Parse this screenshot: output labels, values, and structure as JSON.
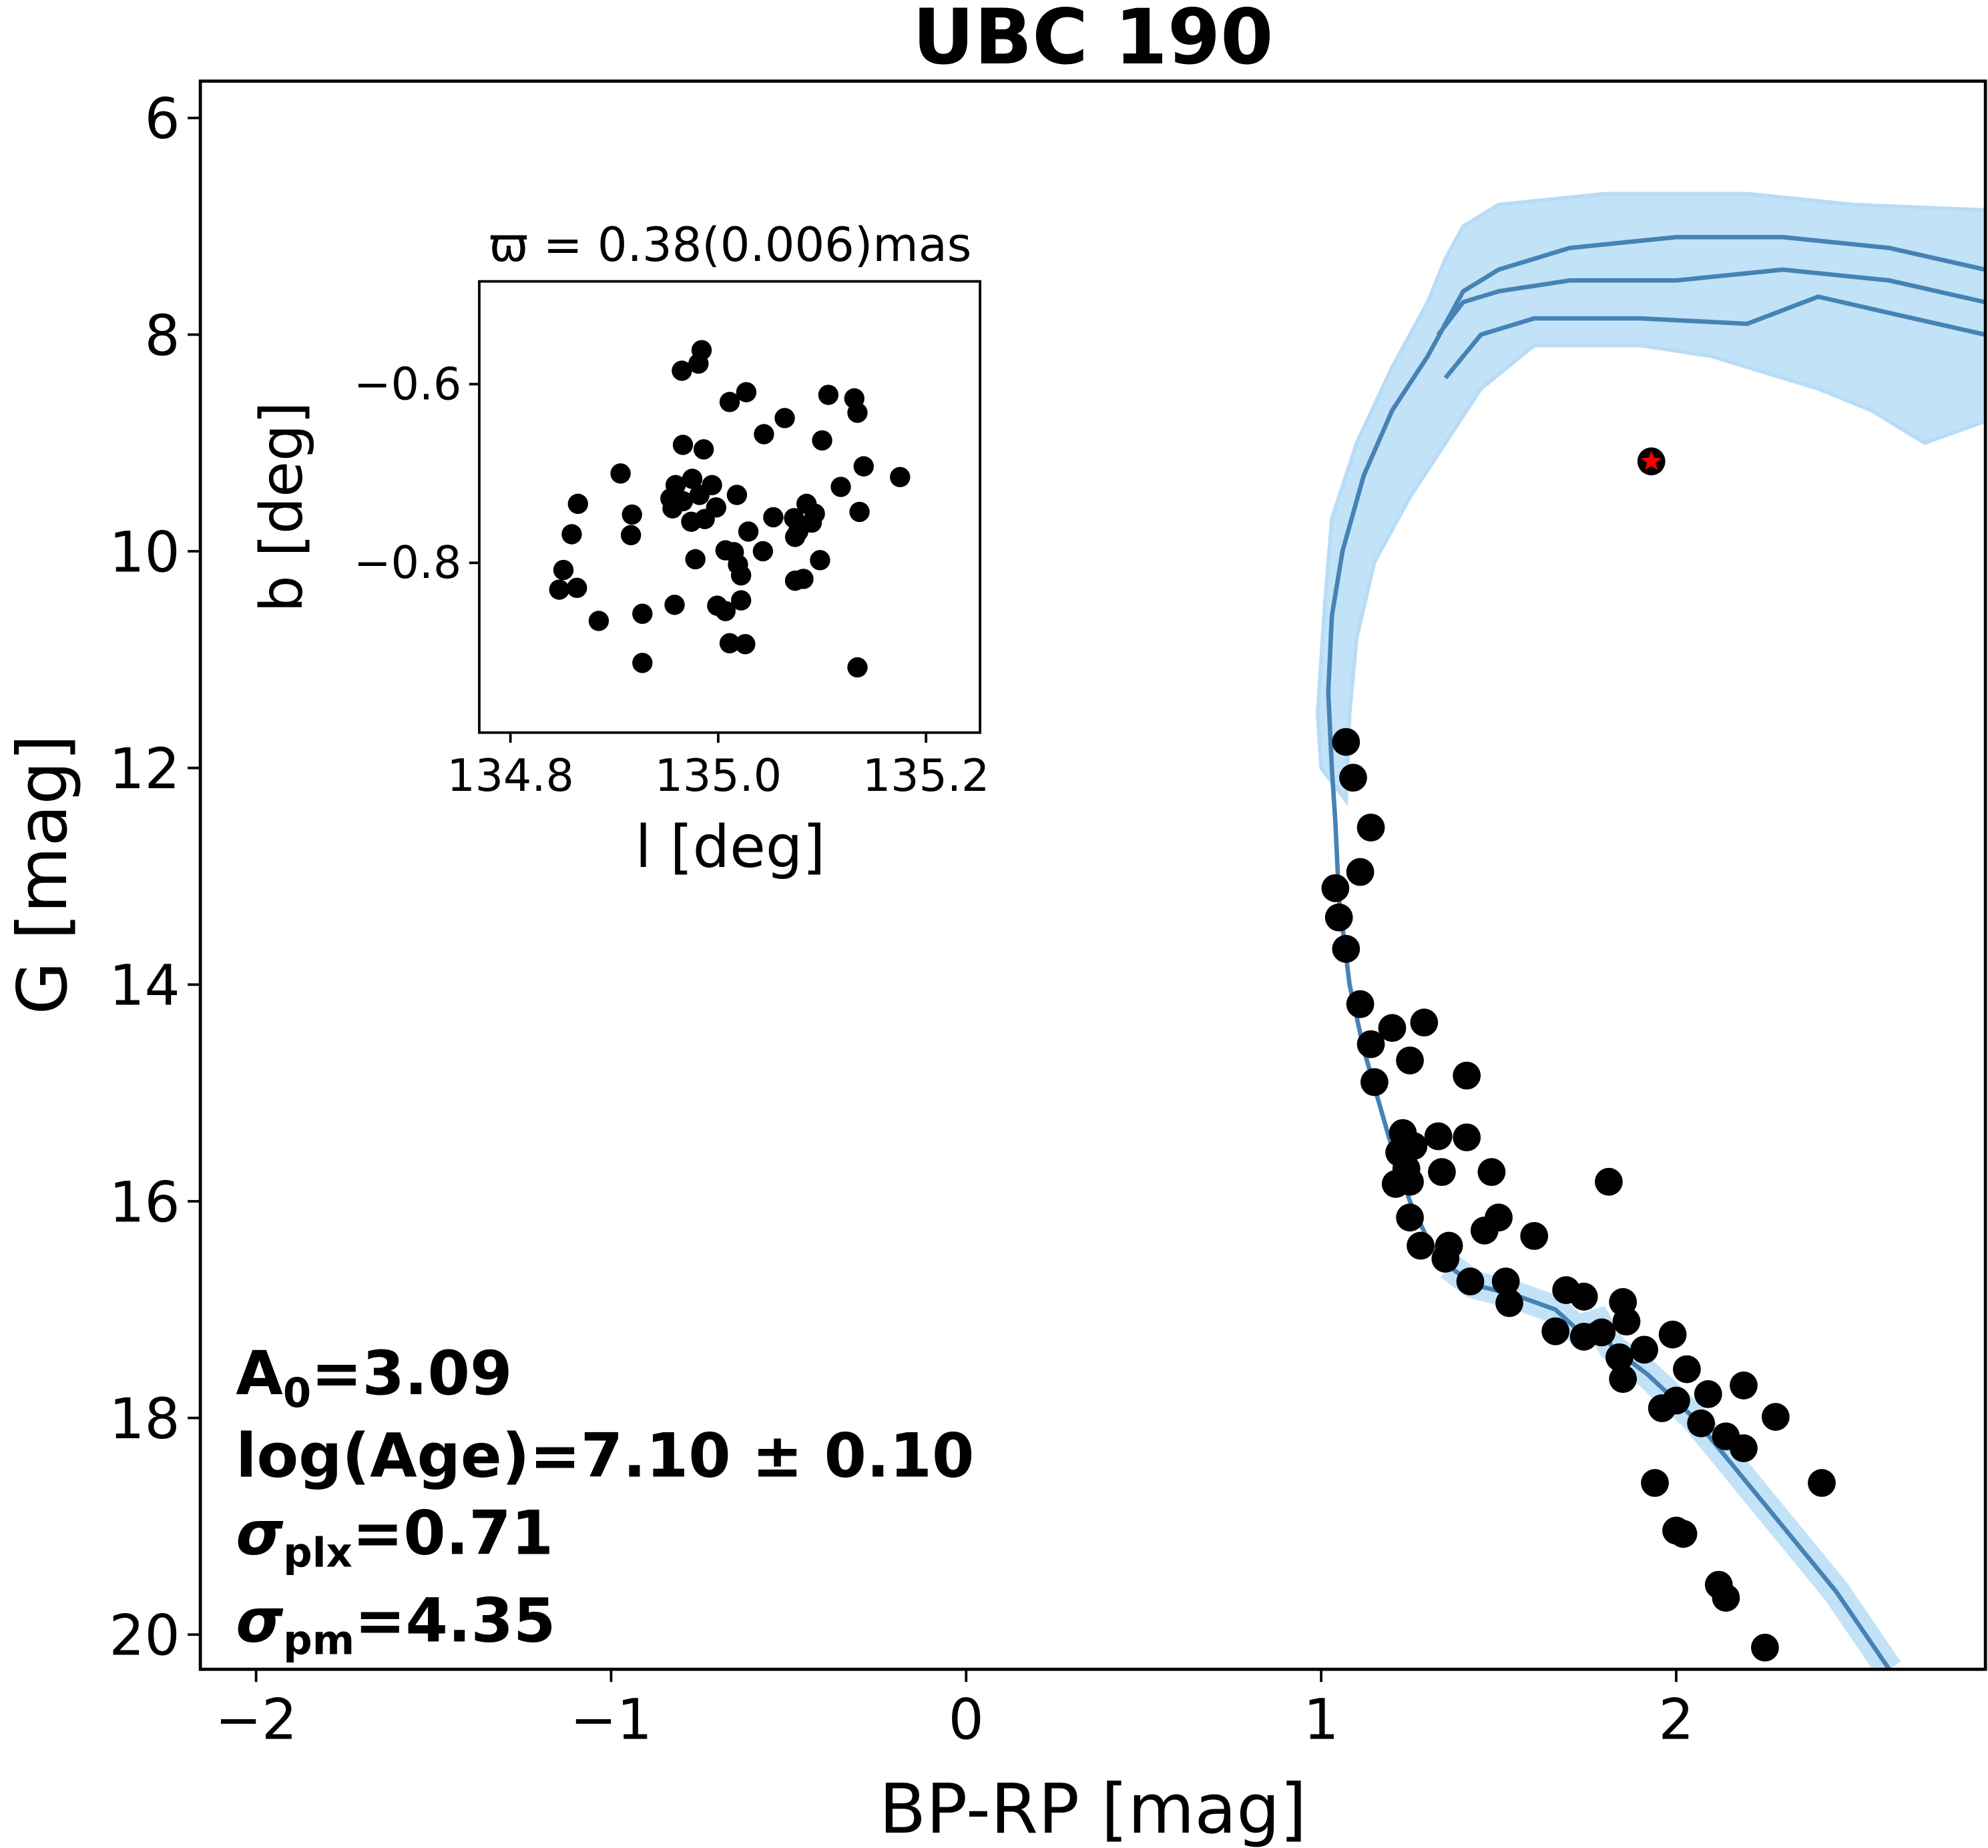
{
  "chart_data": [
    {
      "type": "scatter",
      "title": "UBC 190",
      "xlabel": "BP-RP [mag]",
      "ylabel": "G [mag]",
      "xlim": [
        -2.157,
        2.871
      ],
      "ylim": [
        20.32,
        5.66
      ],
      "y_inverted": true,
      "xticks": [
        -2,
        -1,
        0,
        1,
        2
      ],
      "xtick_labels": [
        "−2",
        "−1",
        "0",
        "1",
        "2"
      ],
      "yticks": [
        6,
        8,
        10,
        12,
        14,
        16,
        18,
        20
      ],
      "ytick_labels": [
        "6",
        "8",
        "10",
        "12",
        "14",
        "16",
        "18",
        "20"
      ],
      "grid": false,
      "colors": {
        "points": "#000000",
        "isochrone": "#4682b4",
        "band": "#aed8f5",
        "highlight": "#ff0000"
      },
      "series": [
        {
          "name": "members",
          "marker": "circle",
          "x": [
            1.07,
            1.09,
            1.14,
            1.11,
            1.04,
            1.05,
            1.07,
            1.11,
            1.2,
            1.29,
            1.14,
            1.25,
            1.41,
            1.15,
            1.23,
            1.33,
            1.22,
            1.26,
            1.41,
            1.24,
            1.34,
            1.48,
            1.21,
            1.25,
            1.81,
            1.25,
            1.5,
            1.46,
            1.6,
            1.28,
            1.36,
            1.35,
            1.42,
            1.52,
            1.69,
            1.74,
            1.53,
            1.85,
            1.86,
            1.66,
            1.74,
            1.79,
            1.99,
            1.84,
            1.91,
            2.03,
            2.09,
            2.19,
            1.85,
            2.0,
            1.96,
            2.28,
            2.07,
            2.14,
            2.19,
            2.41,
            1.94,
            2.02,
            2.12,
            2.14,
            2.25,
            2.0
          ],
          "y": [
            11.76,
            12.09,
            12.55,
            12.96,
            13.11,
            13.38,
            13.67,
            14.18,
            14.4,
            14.35,
            14.55,
            14.7,
            14.84,
            14.9,
            15.37,
            15.4,
            15.55,
            15.49,
            15.41,
            15.7,
            15.73,
            15.73,
            15.84,
            15.82,
            15.82,
            16.15,
            16.15,
            16.27,
            16.32,
            16.41,
            16.41,
            16.53,
            16.74,
            16.74,
            16.82,
            16.88,
            16.94,
            16.93,
            17.11,
            17.2,
            17.25,
            17.21,
            17.23,
            17.44,
            17.37,
            17.55,
            17.78,
            17.7,
            17.64,
            17.84,
            17.91,
            17.99,
            18.05,
            18.17,
            18.28,
            18.6,
            18.6,
            19.07,
            19.54,
            19.66,
            20.12,
            19.04
          ]
        },
        {
          "name": "highlighted star",
          "marker": "star",
          "x": [
            1.93
          ],
          "y": [
            9.17
          ]
        },
        {
          "name": "isochrone",
          "type": "line",
          "x": [
            2.6,
            2.45,
            2.3,
            2.15,
            2.05,
            1.92,
            1.82,
            1.78,
            1.72,
            1.66,
            1.55,
            1.43,
            1.36,
            1.3,
            1.25,
            1.19,
            1.12,
            1.08,
            1.05,
            1.04,
            1.03,
            1.02,
            1.03,
            1.06,
            1.12,
            1.2,
            1.3,
            1.35,
            1.4,
            1.5,
            1.7,
            2.0,
            2.3,
            2.6,
            2.87
          ],
          "y": [
            20.32,
            19.6,
            19.0,
            18.4,
            18.0,
            17.6,
            17.35,
            17.12,
            17.18,
            17.0,
            16.87,
            16.77,
            16.6,
            16.35,
            16.0,
            15.4,
            14.6,
            14.0,
            13.2,
            12.5,
            12.0,
            11.3,
            10.6,
            10.0,
            9.3,
            8.7,
            8.2,
            7.9,
            7.6,
            7.4,
            7.2,
            7.1,
            7.1,
            7.2,
            7.4
          ]
        },
        {
          "name": "isochrone-branch-2",
          "type": "line",
          "x": [
            1.33,
            1.4,
            1.5,
            1.7,
            2.0,
            2.3,
            2.6,
            2.87
          ],
          "y": [
            8.0,
            7.7,
            7.6,
            7.5,
            7.5,
            7.4,
            7.5,
            7.7
          ]
        },
        {
          "name": "isochrone-branch-3",
          "type": "line",
          "x": [
            1.35,
            1.45,
            1.6,
            1.9,
            2.2,
            2.4,
            2.6,
            2.87
          ],
          "y": [
            8.4,
            8.0,
            7.85,
            7.85,
            7.9,
            7.65,
            7.8,
            8.0
          ]
        },
        {
          "name": "isochrone-uncertainty-band",
          "type": "area",
          "x": [
            1.03,
            1.1,
            1.2,
            1.3,
            1.35,
            1.4,
            1.5,
            1.8,
            2.2,
            2.5,
            2.87,
            2.87,
            2.7,
            2.55,
            2.4,
            2.1,
            1.9,
            1.6,
            1.45,
            1.35,
            1.25,
            1.15,
            1.1,
            1.08,
            1.07,
            1.0,
            0.99,
            1.01
          ],
          "y": [
            9.7,
            9.0,
            8.3,
            7.7,
            7.3,
            7.0,
            6.8,
            6.7,
            6.7,
            6.8,
            6.85,
            8.8,
            9.0,
            8.7,
            8.5,
            8.2,
            8.1,
            8.1,
            8.5,
            9.0,
            9.5,
            10.1,
            10.8,
            11.5,
            12.3,
            12.0,
            11.5,
            10.5
          ]
        }
      ],
      "annotations": [
        {
          "main": "A",
          "sub": "0",
          "value": "=3.09",
          "italic": false
        },
        {
          "main": "log(Age)=7.10 ± 0.10",
          "sub": "",
          "value": "",
          "italic": false
        },
        {
          "main": "σ",
          "sub": "plx",
          "value": "=0.71",
          "italic": true
        },
        {
          "main": "σ",
          "sub": "pm",
          "value": "=4.35",
          "italic": true
        }
      ]
    },
    {
      "type": "scatter",
      "title": "ϖ = 0.38(0.006)mas",
      "xlabel": "l [deg]",
      "ylabel": "b [deg]",
      "xlim": [
        134.77,
        135.252
      ],
      "ylim": [
        -0.99,
        -0.485
      ],
      "xticks": [
        134.8,
        135.0,
        135.2
      ],
      "xtick_labels": [
        "134.8",
        "135.0",
        "135.2"
      ],
      "yticks": [
        -0.6,
        -0.8
      ],
      "ytick_labels": [
        "−0.6",
        "−0.8"
      ],
      "series": [
        {
          "name": "members",
          "x": [
            134.984,
            134.981,
            134.965,
            135.027,
            135.011,
            135.106,
            135.131,
            135.134,
            135.064,
            135.044,
            135.1,
            134.966,
            134.986,
            134.906,
            135.14,
            135.175,
            135.118,
            134.959,
            134.975,
            134.994,
            134.954,
            134.966,
            134.982,
            134.998,
            134.956,
            134.974,
            134.987,
            135.018,
            134.865,
            134.917,
            135.136,
            134.859,
            134.916,
            135.053,
            135.073,
            135.085,
            135.093,
            135.09,
            135.077,
            135.074,
            135.029,
            135.007,
            135.015,
            135.043,
            135.019,
            135.022,
            134.978,
            135.098,
            134.851,
            134.847,
            134.864,
            135.074,
            135.082,
            134.958,
            134.999,
            135.007,
            135.022,
            134.927,
            134.885,
            135.011,
            135.026,
            134.927,
            135.134
          ],
          "y": [
            -0.562,
            -0.577,
            -0.585,
            -0.609,
            -0.62,
            -0.612,
            -0.616,
            -0.632,
            -0.638,
            -0.656,
            -0.663,
            -0.668,
            -0.673,
            -0.7,
            -0.692,
            -0.704,
            -0.715,
            -0.713,
            -0.706,
            -0.713,
            -0.728,
            -0.731,
            -0.724,
            -0.738,
            -0.739,
            -0.754,
            -0.751,
            -0.724,
            -0.734,
            -0.746,
            -0.743,
            -0.768,
            -0.769,
            -0.749,
            -0.75,
            -0.734,
            -0.745,
            -0.755,
            -0.765,
            -0.771,
            -0.765,
            -0.786,
            -0.788,
            -0.787,
            -0.802,
            -0.814,
            -0.796,
            -0.797,
            -0.808,
            -0.83,
            -0.828,
            -0.82,
            -0.818,
            -0.847,
            -0.848,
            -0.854,
            -0.842,
            -0.857,
            -0.865,
            -0.89,
            -0.891,
            -0.912,
            -0.917
          ]
        }
      ]
    }
  ]
}
